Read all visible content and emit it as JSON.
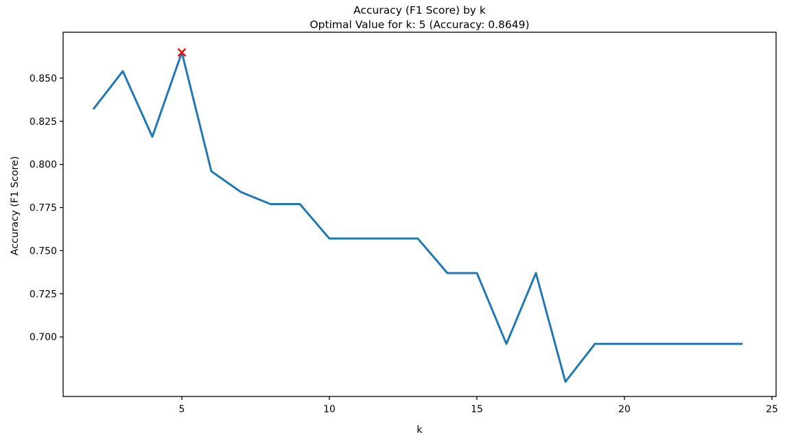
{
  "chart_data": {
    "type": "line",
    "title": "Accuracy (F1 Score) by k",
    "subtitle": "Optimal Value for k: 5 (Accuracy: 0.8649)",
    "xlabel": "k",
    "ylabel": "Accuracy (F1 Score)",
    "x": [
      2,
      3,
      4,
      5,
      6,
      7,
      8,
      9,
      10,
      11,
      12,
      13,
      14,
      15,
      16,
      17,
      18,
      19,
      20,
      21,
      22,
      23,
      24
    ],
    "y": [
      0.832,
      0.854,
      0.816,
      0.8649,
      0.796,
      0.784,
      0.777,
      0.777,
      0.757,
      0.757,
      0.757,
      0.757,
      0.737,
      0.737,
      0.696,
      0.737,
      0.674,
      0.696,
      0.696,
      0.696,
      0.696,
      0.696,
      0.696
    ],
    "xlim": [
      0.977,
      25.14
    ],
    "ylim": [
      0.6655,
      0.8766
    ],
    "xticks": [
      5,
      10,
      15,
      20,
      25
    ],
    "xtick_labels": [
      "5",
      "10",
      "15",
      "20",
      "25"
    ],
    "yticks": [
      0.7,
      0.725,
      0.75,
      0.775,
      0.8,
      0.825,
      0.85
    ],
    "ytick_labels": [
      "0.700",
      "0.725",
      "0.750",
      "0.775",
      "0.800",
      "0.825",
      "0.850"
    ],
    "grid": false,
    "legend": null,
    "line_color": "#1f77b4",
    "axis_color": "#000000",
    "optimal_marker": {
      "k": 5,
      "accuracy": 0.8649,
      "symbol": "x",
      "color": "#ff0000"
    }
  }
}
